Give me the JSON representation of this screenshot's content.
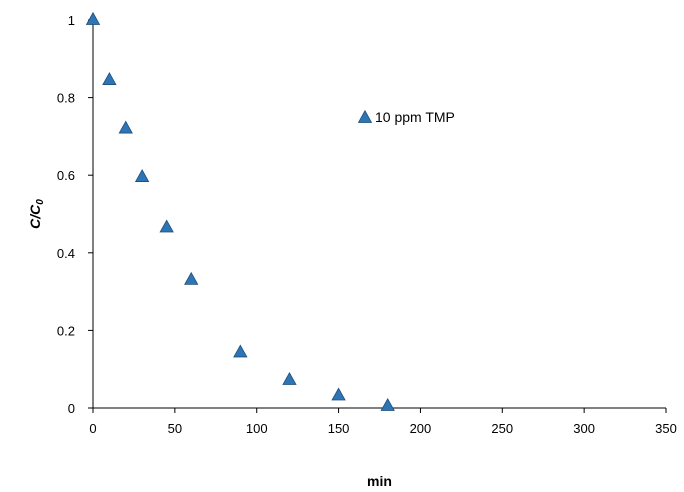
{
  "chart_data": {
    "type": "scatter",
    "title": "",
    "xlabel": "min",
    "ylabel_main": "C/C",
    "ylabel_sub": "0",
    "xlim": [
      0,
      350
    ],
    "ylim": [
      0,
      1
    ],
    "x_ticks": [
      "0",
      "50",
      "100",
      "150",
      "200",
      "250",
      "300",
      "350"
    ],
    "y_ticks": [
      "0",
      "0.2",
      "0.4",
      "0.6",
      "0.8",
      "1"
    ],
    "grid": false,
    "legend_position": "top-center",
    "series": [
      {
        "name": "10 ppm TMP",
        "marker": "triangle",
        "color": "#2e75b6",
        "x": [
          0,
          10,
          20,
          30,
          45,
          60,
          90,
          120,
          150,
          180
        ],
        "y": [
          1.0,
          0.845,
          0.72,
          0.595,
          0.465,
          0.33,
          0.143,
          0.072,
          0.032,
          0.005
        ]
      }
    ]
  }
}
